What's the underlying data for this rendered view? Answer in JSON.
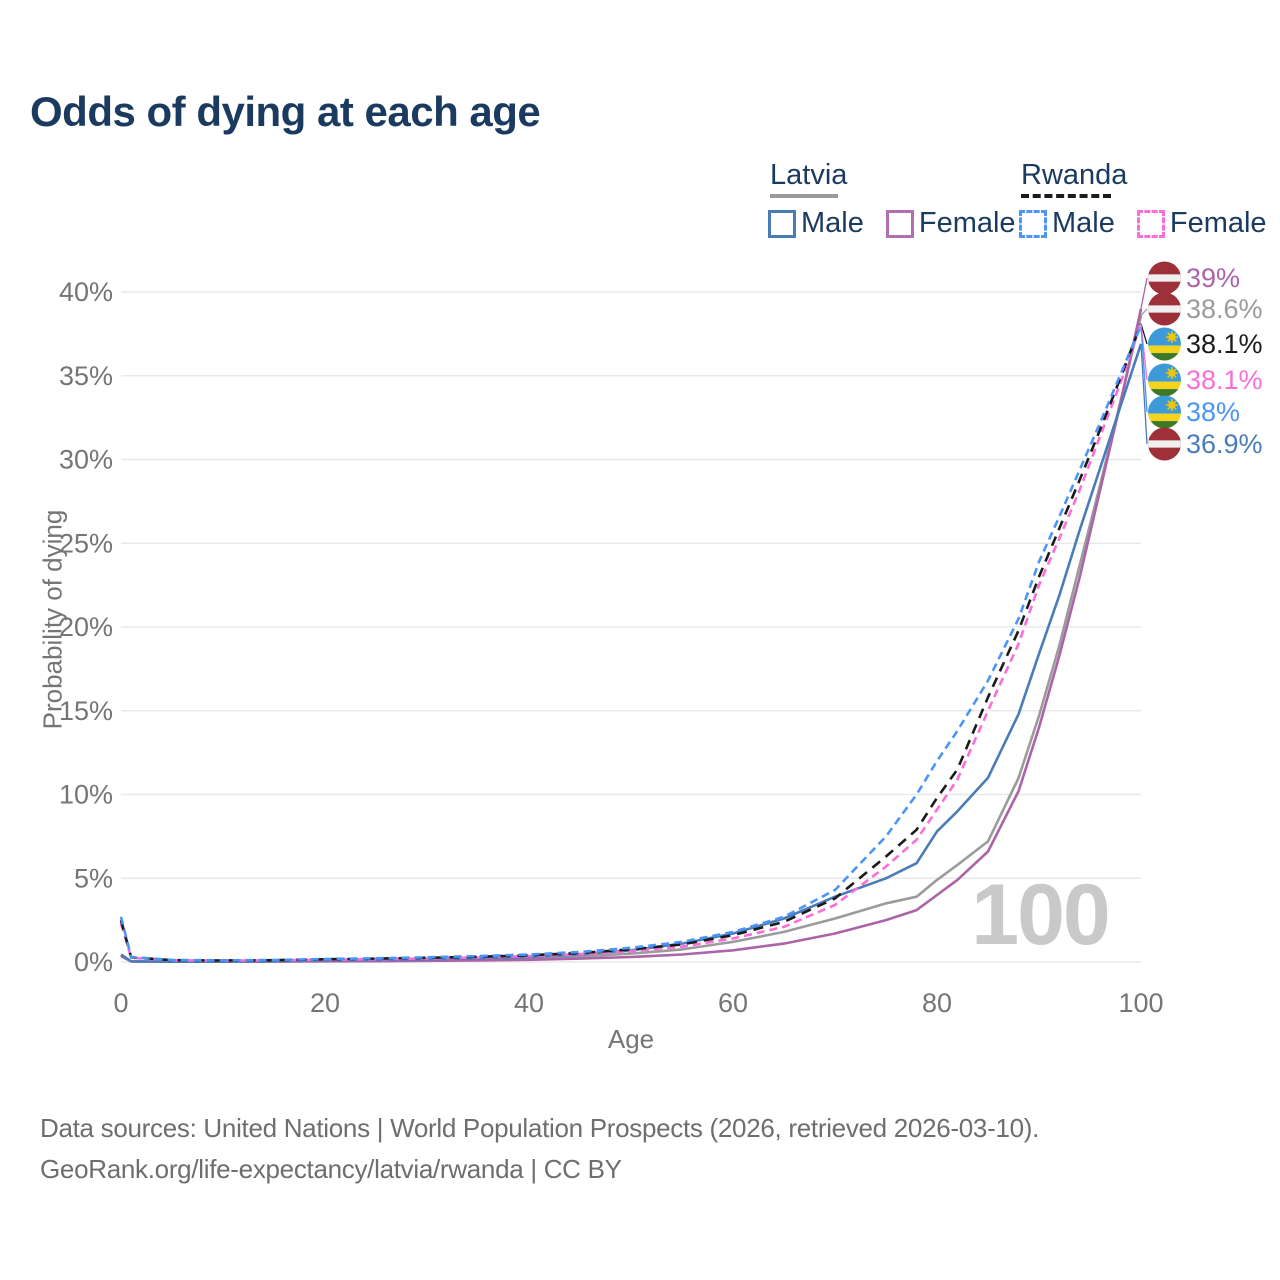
{
  "title": "Odds of dying at each age",
  "legend": {
    "latvia": {
      "label": "Latvia",
      "male": "Male",
      "female": "Female"
    },
    "rwanda": {
      "label": "Rwanda",
      "male": "Male",
      "female": "Female"
    }
  },
  "watermark": "100",
  "footer": {
    "line1": "Data sources: United Nations | World Population Prospects (2026, retrieved 2026-03-10).",
    "line2": "GeoRank.org/life-expectancy/latvia/rwanda | CC BY"
  },
  "chart_data": {
    "type": "line",
    "title": "Odds of dying at each age",
    "xlabel": "Age",
    "ylabel": "Probability of dying",
    "xlim": [
      0,
      100
    ],
    "ylim": [
      0,
      40
    ],
    "x_ticks": [
      0,
      20,
      40,
      60,
      80,
      100
    ],
    "y_ticks": [
      0,
      5,
      10,
      15,
      20,
      25,
      30,
      35,
      40
    ],
    "y_tick_suffix": "%",
    "grid": "horizontal",
    "legend_position": "top-right",
    "ages": [
      0,
      1,
      5,
      10,
      15,
      20,
      25,
      30,
      35,
      40,
      45,
      50,
      55,
      60,
      65,
      70,
      75,
      78,
      80,
      82,
      85,
      88,
      90,
      92,
      94,
      96,
      98,
      100
    ],
    "series": [
      {
        "id": "lv_t",
        "name": "Latvia",
        "country": "latvia",
        "sex": "total",
        "color": "#9b9b9b",
        "dashed": false,
        "values": [
          0.4,
          0.035,
          0.018,
          0.018,
          0.04,
          0.07,
          0.09,
          0.12,
          0.16,
          0.22,
          0.33,
          0.5,
          0.75,
          1.2,
          1.8,
          2.6,
          3.5,
          3.9,
          4.9,
          5.8,
          7.2,
          11.0,
          14.7,
          18.9,
          23.7,
          28.5,
          33.5,
          38.6
        ]
      },
      {
        "id": "lv_f",
        "name": "Latvia Female",
        "country": "latvia",
        "sex": "female",
        "color": "#ac64a8",
        "dashed": false,
        "values": [
          0.35,
          0.03,
          0.015,
          0.015,
          0.025,
          0.04,
          0.05,
          0.07,
          0.09,
          0.13,
          0.2,
          0.3,
          0.45,
          0.7,
          1.1,
          1.7,
          2.5,
          3.1,
          4.0,
          4.9,
          6.6,
          10.2,
          14.0,
          18.3,
          23.0,
          28.2,
          33.4,
          39.0
        ]
      },
      {
        "id": "lv_m",
        "name": "Latvia Male",
        "country": "latvia",
        "sex": "male",
        "color": "#4a7cb8",
        "dashed": false,
        "values": [
          0.45,
          0.04,
          0.02,
          0.02,
          0.05,
          0.1,
          0.13,
          0.17,
          0.22,
          0.3,
          0.45,
          0.7,
          1.1,
          1.7,
          2.6,
          3.9,
          5.0,
          5.9,
          7.8,
          9.0,
          11.0,
          14.8,
          18.4,
          21.9,
          25.8,
          29.5,
          33.2,
          36.9
        ]
      },
      {
        "id": "rw_f",
        "name": "Rwanda Female",
        "country": "rwanda",
        "sex": "female",
        "color": "#fb6ed8",
        "dashed": true,
        "values": [
          2.3,
          0.25,
          0.1,
          0.08,
          0.1,
          0.14,
          0.17,
          0.21,
          0.27,
          0.35,
          0.47,
          0.65,
          0.92,
          1.4,
          2.1,
          3.4,
          5.7,
          7.3,
          9.1,
          10.9,
          15.0,
          19.0,
          22.5,
          25.3,
          28.2,
          31.4,
          34.6,
          38.1
        ]
      },
      {
        "id": "rw_t",
        "name": "Rwanda",
        "country": "rwanda",
        "sex": "total",
        "color": "#1b1b1b",
        "dashed": true,
        "values": [
          2.5,
          0.28,
          0.11,
          0.09,
          0.11,
          0.16,
          0.2,
          0.25,
          0.31,
          0.4,
          0.54,
          0.75,
          1.05,
          1.6,
          2.4,
          3.8,
          6.3,
          7.9,
          9.8,
          11.5,
          15.8,
          19.8,
          23.0,
          25.9,
          28.8,
          31.8,
          34.9,
          38.1
        ]
      },
      {
        "id": "rw_m",
        "name": "Rwanda Male",
        "country": "rwanda",
        "sex": "male",
        "color": "#4b94f8",
        "dashed": true,
        "values": [
          2.7,
          0.3,
          0.12,
          0.1,
          0.12,
          0.18,
          0.22,
          0.28,
          0.35,
          0.45,
          0.6,
          0.85,
          1.2,
          1.8,
          2.7,
          4.3,
          7.5,
          10.0,
          12.0,
          13.8,
          16.8,
          20.5,
          23.9,
          26.6,
          29.4,
          32.2,
          35.1,
          38.0
        ]
      }
    ],
    "end_labels": [
      {
        "series": "lv_f",
        "text": "39%",
        "flag": "latvia",
        "value": 39.0
      },
      {
        "series": "lv_t",
        "text": "38.6%",
        "flag": "latvia",
        "value": 38.6
      },
      {
        "series": "rw_t",
        "text": "38.1%",
        "flag": "rwanda",
        "value": 38.1
      },
      {
        "series": "rw_f",
        "text": "38.1%",
        "flag": "rwanda",
        "value": 38.1
      },
      {
        "series": "rw_m",
        "text": "38%",
        "flag": "rwanda",
        "value": 38.0
      },
      {
        "series": "lv_m",
        "text": "36.9%",
        "flag": "latvia",
        "value": 36.9
      }
    ],
    "hover_age_indicator": "100",
    "flag_colors": {
      "latvia": {
        "maroon": "#9e3039",
        "white": "#f0f0f0"
      },
      "rwanda": {
        "blue": "#3d9ad9",
        "yellow": "#f5d31c",
        "green": "#3c7a28",
        "sun": "#efc50a"
      }
    }
  }
}
